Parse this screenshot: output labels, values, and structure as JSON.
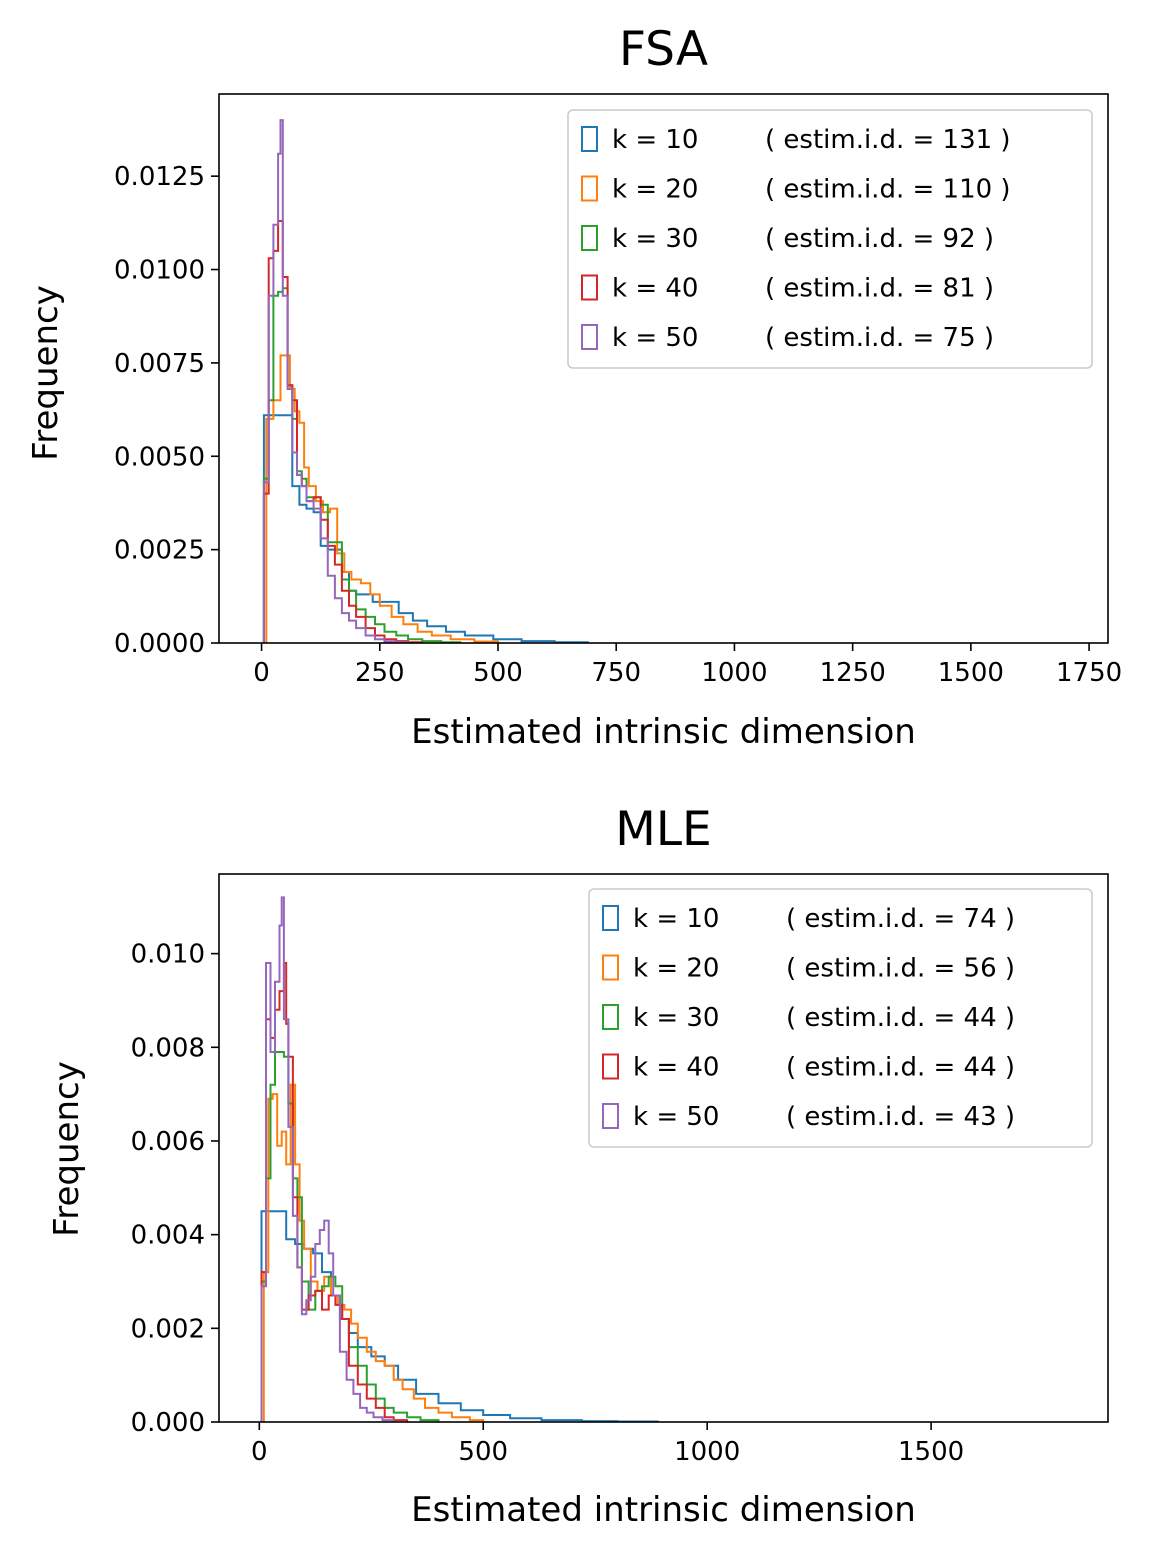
{
  "colors": {
    "blue": "#1f77b4",
    "orange": "#ff7f0e",
    "green": "#2ca02c",
    "red": "#d62728",
    "purple": "#9467bd"
  },
  "chart_data": [
    {
      "type": "histogram",
      "title": "FSA",
      "xlabel": "Estimated intrinsic dimension",
      "ylabel": "Frequency",
      "xlim": [
        -90,
        1790
      ],
      "ylim": [
        0,
        0.0147
      ],
      "xticks": [
        0,
        250,
        500,
        750,
        1000,
        1250,
        1500,
        1750
      ],
      "xtick_labels": [
        "0",
        "250",
        "500",
        "750",
        "1000",
        "1250",
        "1500",
        "1750"
      ],
      "yticks": [
        0.0,
        0.0025,
        0.005,
        0.0075,
        0.01,
        0.0125
      ],
      "ytick_labels": [
        "0.0000",
        "0.0025",
        "0.0050",
        "0.0075",
        "0.0100",
        "0.0125"
      ],
      "legend_position": "upper right",
      "series": [
        {
          "name": "k = 10",
          "note": "( estim.i.d. = 131 )",
          "color": "blue",
          "edges": [
            5,
            20,
            35,
            50,
            65,
            80,
            95,
            110,
            125,
            140,
            155,
            170,
            185,
            200,
            215,
            235,
            260,
            290,
            320,
            350,
            390,
            430,
            490,
            550,
            620,
            690
          ],
          "values": [
            0.0061,
            0.0061,
            0.0061,
            0.0061,
            0.0042,
            0.0037,
            0.0036,
            0.0035,
            0.0026,
            0.0025,
            0.0025,
            0.0019,
            0.0014,
            0.0013,
            0.0013,
            0.0011,
            0.0011,
            0.0008,
            0.0006,
            0.00045,
            0.0003,
            0.0002,
            0.0001,
            5e-05,
            2e-05
          ]
        },
        {
          "name": "k = 20",
          "note": "( estim.i.d. = 110 )",
          "color": "orange",
          "edges": [
            10,
            25,
            40,
            50,
            60,
            70,
            80,
            90,
            100,
            115,
            130,
            145,
            160,
            175,
            190,
            210,
            230,
            250,
            275,
            300,
            330,
            360,
            400,
            450,
            500
          ],
          "values": [
            0.006,
            0.0065,
            0.0077,
            0.0077,
            0.0068,
            0.0062,
            0.0059,
            0.0047,
            0.0042,
            0.0038,
            0.0035,
            0.0036,
            0.0024,
            0.0019,
            0.0017,
            0.0016,
            0.0013,
            0.001,
            0.0007,
            0.0005,
            0.0003,
            0.0002,
            0.0001,
            4e-05
          ]
        },
        {
          "name": "k = 30",
          "note": "( estim.i.d. = 92 )",
          "color": "green",
          "edges": [
            5,
            15,
            25,
            35,
            45,
            55,
            65,
            75,
            85,
            95,
            110,
            125,
            140,
            155,
            170,
            185,
            200,
            220,
            240,
            260,
            285,
            310,
            340,
            380,
            420
          ],
          "values": [
            0.0044,
            0.0065,
            0.0093,
            0.0094,
            0.0095,
            0.0069,
            0.006,
            0.0046,
            0.0044,
            0.0039,
            0.0039,
            0.0037,
            0.0027,
            0.0027,
            0.0017,
            0.0014,
            0.0009,
            0.0007,
            0.0005,
            0.0003,
            0.0002,
            0.0001,
            5e-05,
            2e-05
          ]
        },
        {
          "name": "k = 40",
          "note": "( estim.i.d. = 81 )",
          "color": "red",
          "edges": [
            5,
            15,
            25,
            35,
            45,
            55,
            65,
            75,
            85,
            95,
            110,
            125,
            140,
            155,
            170,
            185,
            200,
            220,
            240,
            260,
            285,
            310,
            340
          ],
          "values": [
            0.004,
            0.0103,
            0.0105,
            0.0113,
            0.0098,
            0.0069,
            0.0065,
            0.0045,
            0.0042,
            0.0038,
            0.0039,
            0.0033,
            0.0026,
            0.0021,
            0.0014,
            0.001,
            0.0007,
            0.0004,
            0.0002,
            0.0001,
            5e-05,
            2e-05
          ]
        },
        {
          "name": "k = 50",
          "note": "( estim.i.d. = 75 )",
          "color": "purple",
          "edges": [
            5,
            15,
            25,
            35,
            40,
            45,
            55,
            65,
            75,
            85,
            95,
            110,
            125,
            140,
            155,
            170,
            185,
            200,
            220,
            240,
            260,
            285,
            310
          ],
          "values": [
            0.0043,
            0.0093,
            0.0112,
            0.0131,
            0.014,
            0.0093,
            0.0068,
            0.0051,
            0.0045,
            0.0042,
            0.0038,
            0.0036,
            0.0028,
            0.0018,
            0.0012,
            0.0008,
            0.0006,
            0.0004,
            0.0002,
            0.0001,
            4e-05,
            2e-05
          ]
        }
      ]
    },
    {
      "type": "histogram",
      "title": "MLE",
      "xlabel": "Estimated intrinsic dimension",
      "ylabel": "Frequency",
      "xlim": [
        -90,
        1895
      ],
      "ylim": [
        0,
        0.0117
      ],
      "xticks": [
        0,
        500,
        1000,
        1500
      ],
      "xtick_labels": [
        "0",
        "500",
        "1000",
        "1500"
      ],
      "yticks": [
        0.0,
        0.002,
        0.004,
        0.006,
        0.008,
        0.01
      ],
      "ytick_labels": [
        "0.000",
        "0.002",
        "0.004",
        "0.006",
        "0.008",
        "0.010"
      ],
      "legend_position": "upper right",
      "series": [
        {
          "name": "k = 10",
          "note": "( estim.i.d. = 74 )",
          "color": "blue",
          "edges": [
            5,
            20,
            40,
            60,
            80,
            100,
            120,
            140,
            160,
            180,
            200,
            220,
            250,
            280,
            310,
            350,
            400,
            450,
            500,
            560,
            630,
            720,
            800,
            890
          ],
          "values": [
            0.0045,
            0.0045,
            0.0045,
            0.0039,
            0.0038,
            0.0037,
            0.0036,
            0.0032,
            0.0027,
            0.0022,
            0.0019,
            0.0016,
            0.0014,
            0.0012,
            0.0009,
            0.0006,
            0.0004,
            0.00025,
            0.00015,
            8e-05,
            4e-05,
            2e-05,
            1e-05
          ]
        },
        {
          "name": "k = 20",
          "note": "( estim.i.d. = 56 )",
          "color": "orange",
          "edges": [
            10,
            20,
            30,
            40,
            50,
            60,
            70,
            80,
            90,
            100,
            115,
            130,
            145,
            160,
            175,
            190,
            205,
            220,
            240,
            260,
            280,
            300,
            320,
            345,
            370,
            400,
            430,
            470,
            500
          ],
          "values": [
            0.0032,
            0.0069,
            0.007,
            0.0059,
            0.0062,
            0.0055,
            0.0072,
            0.0055,
            0.0043,
            0.0037,
            0.003,
            0.0028,
            0.0031,
            0.0027,
            0.0025,
            0.0024,
            0.0021,
            0.0018,
            0.0015,
            0.0013,
            0.0012,
            0.0009,
            0.0007,
            0.0005,
            0.0003,
            0.0002,
            0.0001,
            4e-05
          ]
        },
        {
          "name": "k = 30",
          "note": "( estim.i.d. = 44 )",
          "color": "green",
          "edges": [
            5,
            15,
            25,
            35,
            45,
            55,
            65,
            75,
            85,
            95,
            110,
            125,
            140,
            155,
            170,
            185,
            200,
            220,
            240,
            260,
            280,
            300,
            330,
            360,
            400
          ],
          "values": [
            0.003,
            0.0052,
            0.0072,
            0.0079,
            0.0079,
            0.0078,
            0.0068,
            0.0052,
            0.0048,
            0.003,
            0.0024,
            0.0028,
            0.0029,
            0.0031,
            0.0029,
            0.0022,
            0.0016,
            0.0012,
            0.0008,
            0.0005,
            0.0003,
            0.0002,
            0.0001,
            4e-05
          ]
        },
        {
          "name": "k = 40",
          "note": "( estim.i.d. = 44 )",
          "color": "red",
          "edges": [
            5,
            15,
            25,
            35,
            45,
            55,
            60,
            65,
            75,
            85,
            95,
            110,
            125,
            140,
            155,
            170,
            185,
            200,
            220,
            240,
            260,
            280,
            300,
            330
          ],
          "values": [
            0.0032,
            0.0086,
            0.0082,
            0.0088,
            0.0092,
            0.0098,
            0.0085,
            0.0078,
            0.0048,
            0.0033,
            0.0024,
            0.0027,
            0.0028,
            0.0024,
            0.0027,
            0.0025,
            0.0022,
            0.0012,
            0.0008,
            0.0005,
            0.0003,
            0.0001,
            4e-05
          ]
        },
        {
          "name": "k = 50",
          "note": "( estim.i.d. = 43 )",
          "color": "purple",
          "edges": [
            5,
            15,
            25,
            35,
            45,
            50,
            55,
            65,
            75,
            85,
            95,
            105,
            115,
            125,
            135,
            145,
            155,
            165,
            180,
            195,
            210,
            225,
            240,
            255,
            275,
            300
          ],
          "values": [
            0.0029,
            0.0098,
            0.0079,
            0.0094,
            0.0106,
            0.0112,
            0.0086,
            0.0063,
            0.0044,
            0.0033,
            0.0023,
            0.0026,
            0.0031,
            0.0038,
            0.0041,
            0.0043,
            0.0036,
            0.0027,
            0.0015,
            0.0009,
            0.0006,
            0.0003,
            0.0002,
            0.0001,
            4e-05
          ]
        }
      ]
    }
  ]
}
